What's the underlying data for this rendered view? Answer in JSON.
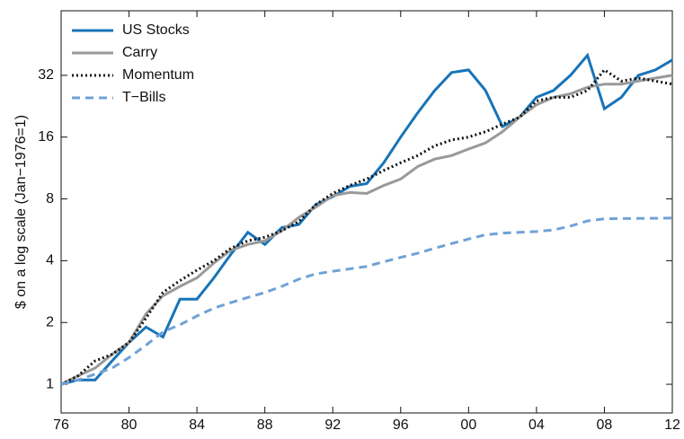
{
  "chart_data": {
    "type": "line",
    "y_label": "$ on a log scale (Jan−1976=1)",
    "log_y": true,
    "legend": "upper-left",
    "x": [
      1976,
      1977,
      1978,
      1979,
      1980,
      1981,
      1982,
      1983,
      1984,
      1985,
      1986,
      1987,
      1988,
      1989,
      1990,
      1991,
      1992,
      1993,
      1994,
      1995,
      1996,
      1997,
      1998,
      1999,
      2000,
      2001,
      2002,
      2003,
      2004,
      2005,
      2006,
      2007,
      2008,
      2009,
      2010,
      2011,
      2012
    ],
    "series": [
      {
        "name": "US Stocks",
        "color": "#1874b8",
        "style": "solid",
        "values": [
          1,
          1.05,
          1.05,
          1.3,
          1.6,
          1.9,
          1.7,
          2.6,
          2.6,
          3.3,
          4.3,
          5.5,
          4.8,
          5.8,
          6.0,
          7.5,
          8.2,
          9.2,
          9.5,
          12,
          16,
          21,
          27,
          33,
          34,
          27,
          18,
          20,
          25,
          27,
          32,
          40,
          22,
          25,
          32,
          34,
          38
        ]
      },
      {
        "name": "Carry",
        "color": "#999999",
        "style": "solid",
        "values": [
          1,
          1.1,
          1.2,
          1.4,
          1.6,
          2.2,
          2.7,
          3.0,
          3.3,
          3.9,
          4.5,
          4.8,
          5.0,
          5.6,
          6.5,
          7.3,
          8.3,
          8.6,
          8.5,
          9.3,
          10,
          11.5,
          12.5,
          13,
          14,
          15,
          17,
          20,
          23,
          25,
          26,
          28,
          29,
          29,
          30,
          31,
          32
        ]
      },
      {
        "name": "Momentum",
        "color": "#111111",
        "style": "dotted",
        "values": [
          1,
          1.1,
          1.3,
          1.4,
          1.6,
          2.1,
          2.8,
          3.2,
          3.6,
          4.0,
          4.6,
          5.0,
          5.2,
          5.6,
          6.2,
          7.5,
          8.5,
          9.3,
          10,
          11,
          12,
          13,
          14.5,
          15.5,
          16,
          17,
          18.5,
          20,
          24,
          25,
          25,
          27,
          34,
          30,
          31,
          30,
          29
        ]
      },
      {
        "name": "T−Bills",
        "color": "#6fa2d6",
        "style": "dashed",
        "values": [
          1,
          1.05,
          1.12,
          1.2,
          1.35,
          1.55,
          1.8,
          1.95,
          2.15,
          2.35,
          2.5,
          2.65,
          2.8,
          3.0,
          3.25,
          3.45,
          3.55,
          3.65,
          3.75,
          3.95,
          4.15,
          4.35,
          4.6,
          4.85,
          5.1,
          5.35,
          5.45,
          5.5,
          5.55,
          5.65,
          5.9,
          6.25,
          6.4,
          6.42,
          6.43,
          6.44,
          6.45
        ]
      }
    ],
    "xlim": [
      1976,
      2012
    ],
    "xticks": [
      {
        "value": 1976,
        "label": "76"
      },
      {
        "value": 1980,
        "label": "80"
      },
      {
        "value": 1984,
        "label": "84"
      },
      {
        "value": 1988,
        "label": "88"
      },
      {
        "value": 1992,
        "label": "92"
      },
      {
        "value": 1996,
        "label": "96"
      },
      {
        "value": 2000,
        "label": "00"
      },
      {
        "value": 2004,
        "label": "04"
      },
      {
        "value": 2008,
        "label": "08"
      },
      {
        "value": 2012,
        "label": "12"
      }
    ],
    "ylim": [
      0.725,
      66
    ],
    "yticks": [
      1,
      2,
      4,
      8,
      16,
      32
    ]
  }
}
